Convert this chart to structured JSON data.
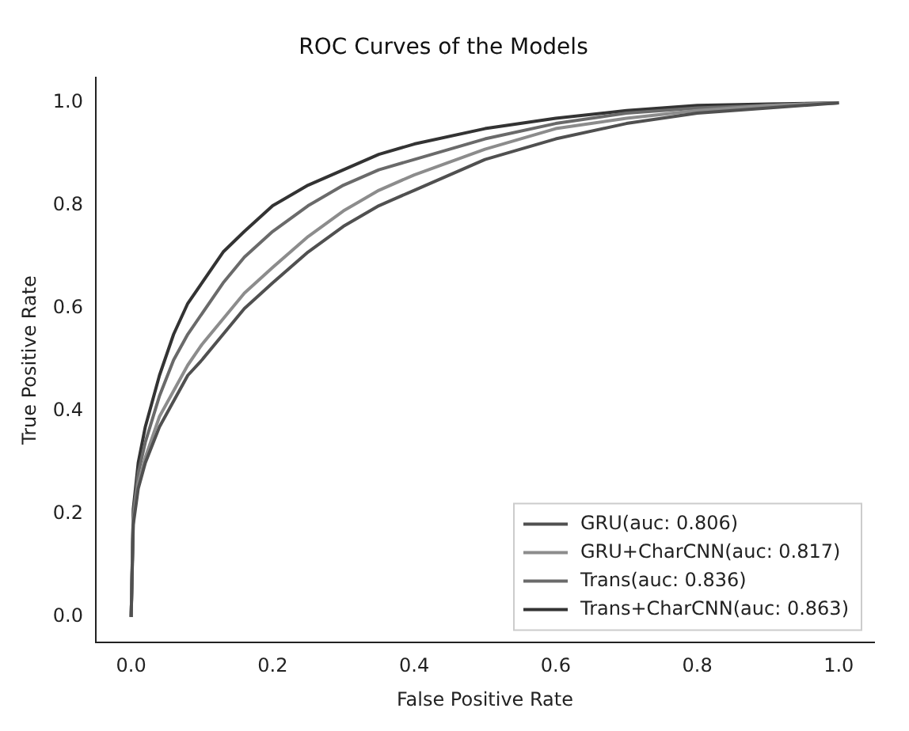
{
  "chart_data": {
    "type": "line",
    "title": "ROC Curves of the Models",
    "xlabel": "False Positive Rate",
    "ylabel": "True Positive Rate",
    "x": [
      0,
      0.003,
      0.01,
      0.02,
      0.04,
      0.06,
      0.08,
      0.1,
      0.13,
      0.16,
      0.2,
      0.25,
      0.3,
      0.35,
      0.4,
      0.5,
      0.6,
      0.7,
      0.8,
      0.9,
      1.0
    ],
    "series": [
      {
        "name": "GRU(auc: 0.806)",
        "color": "#505050",
        "values": [
          0,
          0.18,
          0.25,
          0.3,
          0.37,
          0.42,
          0.47,
          0.5,
          0.55,
          0.6,
          0.65,
          0.71,
          0.76,
          0.8,
          0.83,
          0.89,
          0.93,
          0.96,
          0.98,
          0.99,
          1.0
        ]
      },
      {
        "name": "GRU+CharCNN(auc: 0.817)",
        "color": "#8c8c8c",
        "values": [
          0,
          0.19,
          0.26,
          0.31,
          0.39,
          0.44,
          0.49,
          0.53,
          0.58,
          0.63,
          0.68,
          0.74,
          0.79,
          0.83,
          0.86,
          0.91,
          0.95,
          0.97,
          0.985,
          0.995,
          1.0
        ]
      },
      {
        "name": "Trans(auc: 0.836)",
        "color": "#6a6a6a",
        "values": [
          0,
          0.2,
          0.28,
          0.34,
          0.43,
          0.5,
          0.55,
          0.59,
          0.65,
          0.7,
          0.75,
          0.8,
          0.84,
          0.87,
          0.89,
          0.93,
          0.96,
          0.98,
          0.99,
          0.995,
          1.0
        ]
      },
      {
        "name": "Trans+CharCNN(auc: 0.863)",
        "color": "#333333",
        "values": [
          0,
          0.21,
          0.3,
          0.37,
          0.47,
          0.55,
          0.61,
          0.65,
          0.71,
          0.75,
          0.8,
          0.84,
          0.87,
          0.9,
          0.92,
          0.95,
          0.97,
          0.985,
          0.995,
          0.998,
          1.0
        ]
      }
    ],
    "xlim": [
      -0.05,
      1.05
    ],
    "ylim": [
      -0.05,
      1.05
    ],
    "xticks": [
      {
        "value": 0,
        "label": "0.0"
      },
      0.2,
      0.4,
      0.6,
      0.8,
      {
        "value": 1,
        "label": "1.0"
      }
    ],
    "yticks": [
      {
        "value": 0,
        "label": "0.0"
      },
      0.2,
      0.4,
      0.6,
      0.8,
      {
        "value": 1,
        "label": "1.0"
      }
    ],
    "legend": "bottom right",
    "grid": false,
    "marker": "none",
    "line_style": "solid"
  }
}
